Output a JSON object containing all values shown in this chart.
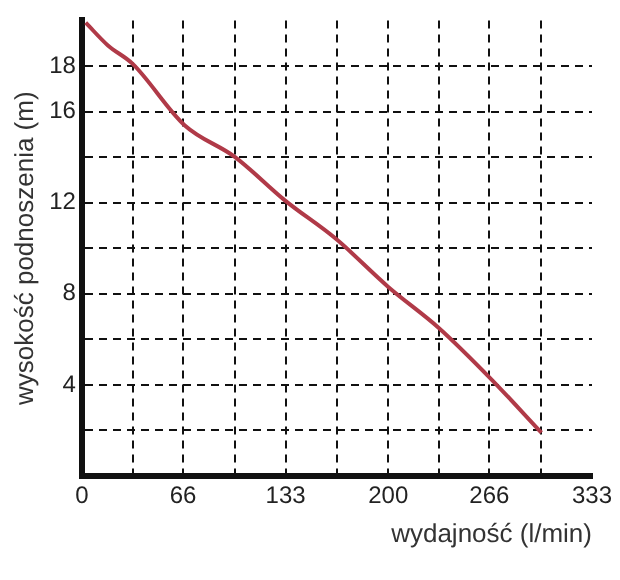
{
  "chart_data": {
    "type": "line",
    "xlabel": "wydajność (l/min)",
    "ylabel": "wysokość podnoszenia (m)",
    "series": [
      {
        "color": "#b03a48",
        "x": [
          2.5,
          17,
          33,
          67,
          100,
          132.5,
          166,
          200,
          233,
          266.5,
          300
        ],
        "values": [
          19.9,
          18.9,
          18.1,
          15.4,
          14.0,
          12.1,
          10.4,
          8.3,
          6.5,
          4.3,
          1.9
        ]
      }
    ],
    "xlim": [
      0,
      333
    ],
    "xticks": [
      0,
      {
        "value": 33.3,
        "label": null
      },
      66,
      {
        "value": 100,
        "label": null
      },
      133,
      {
        "value": 166.5,
        "label": null
      },
      200,
      {
        "value": 233,
        "label": null
      },
      266,
      {
        "value": 300,
        "label": null
      },
      333
    ],
    "ylim": [
      0,
      20
    ],
    "yticks": [
      {
        "value": 0,
        "label": null
      },
      {
        "value": 2,
        "label": null
      },
      4,
      {
        "value": 6,
        "label": null
      },
      8,
      {
        "value": 10,
        "label": null
      },
      12,
      {
        "value": 14,
        "label": null
      },
      16,
      18
    ],
    "grid": true,
    "legend": false,
    "marker": "none",
    "line_style": "solid"
  }
}
